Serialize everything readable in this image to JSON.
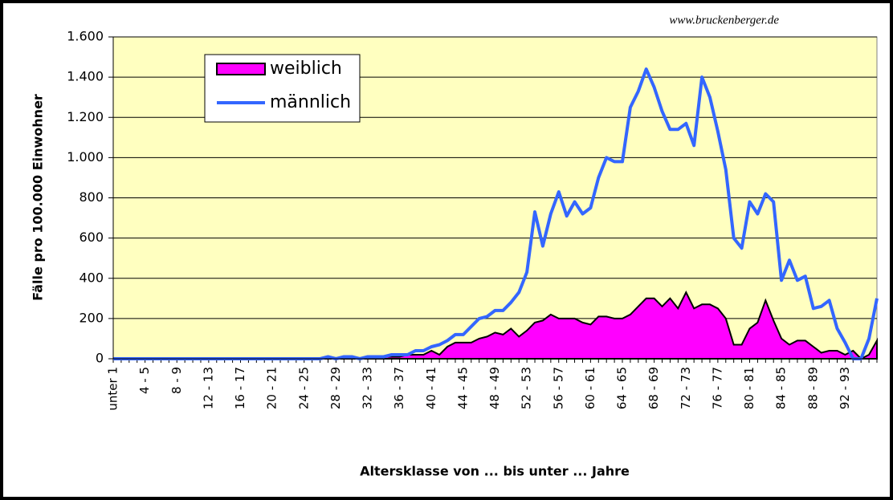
{
  "chart_data": {
    "type": "line",
    "source": "www.bruckenberger.de",
    "ylabel": "Fälle pro 100.000 Einwohner",
    "xlabel": "Altersklasse von ... bis unter ... Jahre",
    "categories": [
      "unter 1",
      null,
      null,
      null,
      "4 - 5",
      null,
      null,
      null,
      "8 - 9",
      null,
      null,
      null,
      "12 - 13",
      null,
      null,
      null,
      "16 - 17",
      null,
      null,
      null,
      "20 - 21",
      null,
      null,
      null,
      "24 - 25",
      null,
      null,
      null,
      "28 - 29",
      null,
      null,
      null,
      "32 - 33",
      null,
      null,
      null,
      "36 - 37",
      null,
      null,
      null,
      "40 - 41",
      null,
      null,
      null,
      "44 - 45",
      null,
      null,
      null,
      "48 - 49",
      null,
      null,
      null,
      "52 - 53",
      null,
      null,
      null,
      "56 - 57",
      null,
      null,
      null,
      "60 - 61",
      null,
      null,
      null,
      "64 - 65",
      null,
      null,
      null,
      "68 - 69",
      null,
      null,
      null,
      "72 - 73",
      null,
      null,
      null,
      "76 - 77",
      null,
      null,
      null,
      "80 - 81",
      null,
      null,
      null,
      "84 - 85",
      null,
      null,
      null,
      "88 - 89",
      null,
      null,
      null,
      "92 - 93",
      null,
      null,
      null,
      null
    ],
    "series": [
      {
        "name": "weiblich",
        "color": "#ff00ff",
        "area": true,
        "values": [
          0,
          0,
          0,
          0,
          0,
          0,
          0,
          0,
          0,
          0,
          0,
          0,
          0,
          0,
          0,
          0,
          0,
          0,
          0,
          0,
          0,
          0,
          0,
          0,
          0,
          0,
          0,
          0,
          0,
          0,
          0,
          0,
          0,
          0,
          10,
          10,
          10,
          20,
          20,
          20,
          40,
          20,
          60,
          80,
          80,
          80,
          100,
          110,
          130,
          120,
          150,
          110,
          140,
          180,
          190,
          220,
          200,
          200,
          200,
          180,
          170,
          210,
          210,
          200,
          200,
          220,
          260,
          300,
          300,
          260,
          300,
          250,
          330,
          250,
          270,
          270,
          250,
          200,
          70,
          70,
          150,
          180,
          290,
          190,
          100,
          70,
          90,
          90,
          60,
          30,
          40,
          40,
          20,
          40,
          0,
          20,
          90
        ]
      },
      {
        "name": "männlich",
        "color": "#3366ff",
        "area": false,
        "values": [
          0,
          0,
          0,
          0,
          0,
          0,
          0,
          0,
          0,
          0,
          0,
          0,
          0,
          0,
          0,
          0,
          0,
          0,
          0,
          0,
          0,
          0,
          0,
          0,
          0,
          0,
          0,
          10,
          0,
          10,
          10,
          0,
          10,
          10,
          10,
          20,
          20,
          20,
          40,
          40,
          60,
          70,
          90,
          120,
          120,
          160,
          200,
          210,
          240,
          240,
          280,
          330,
          430,
          730,
          560,
          720,
          830,
          710,
          780,
          720,
          750,
          900,
          1000,
          980,
          980,
          1250,
          1330,
          1440,
          1350,
          1230,
          1140,
          1140,
          1170,
          1060,
          1400,
          1300,
          1130,
          940,
          600,
          550,
          780,
          720,
          820,
          780,
          390,
          490,
          390,
          410,
          250,
          260,
          290,
          150,
          80,
          0,
          0,
          100,
          300
        ]
      }
    ],
    "ylim": [
      0,
      1600
    ],
    "yticks": [
      0,
      200,
      400,
      600,
      800,
      {
        "value": 1000,
        "label": "1.000"
      },
      {
        "value": 1200,
        "label": "1.200"
      },
      {
        "value": 1400,
        "label": "1.400"
      },
      {
        "value": 1600,
        "label": "1.600"
      }
    ],
    "grid": true,
    "legend": "upper left"
  }
}
